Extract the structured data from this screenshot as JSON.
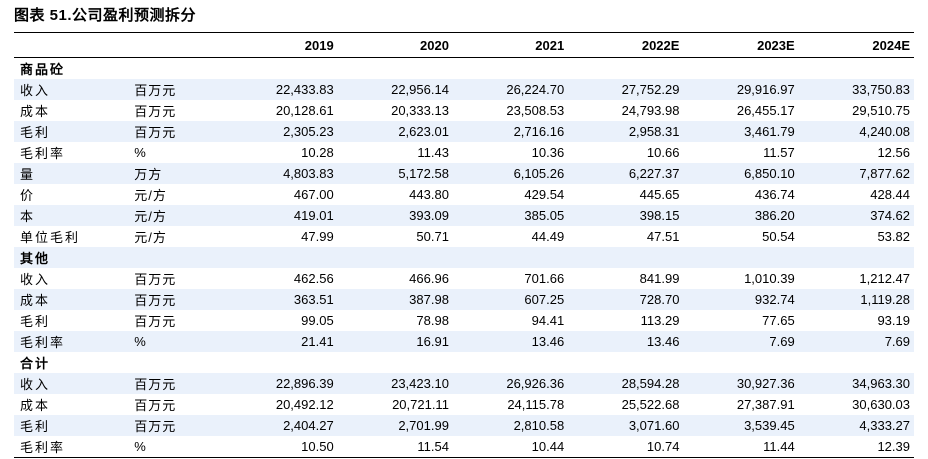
{
  "title": "图表 51.公司盈利预测拆分",
  "columns": [
    "2019",
    "2020",
    "2021",
    "2022E",
    "2023E",
    "2024E"
  ],
  "rows": [
    {
      "type": "section",
      "label": "商品砼"
    },
    {
      "type": "data",
      "label": "收入",
      "unit": "百万元",
      "values": [
        "22,433.83",
        "22,956.14",
        "26,224.70",
        "27,752.29",
        "29,916.97",
        "33,750.83"
      ]
    },
    {
      "type": "data",
      "label": "成本",
      "unit": "百万元",
      "values": [
        "20,128.61",
        "20,333.13",
        "23,508.53",
        "24,793.98",
        "26,455.17",
        "29,510.75"
      ]
    },
    {
      "type": "data",
      "label": "毛利",
      "unit": "百万元",
      "values": [
        "2,305.23",
        "2,623.01",
        "2,716.16",
        "2,958.31",
        "3,461.79",
        "4,240.08"
      ]
    },
    {
      "type": "data",
      "label": "毛利率",
      "unit": "%",
      "values": [
        "10.28",
        "11.43",
        "10.36",
        "10.66",
        "11.57",
        "12.56"
      ]
    },
    {
      "type": "data",
      "label": "量",
      "unit": "万方",
      "values": [
        "4,803.83",
        "5,172.58",
        "6,105.26",
        "6,227.37",
        "6,850.10",
        "7,877.62"
      ]
    },
    {
      "type": "data",
      "label": "价",
      "unit": "元/方",
      "values": [
        "467.00",
        "443.80",
        "429.54",
        "445.65",
        "436.74",
        "428.44"
      ]
    },
    {
      "type": "data",
      "label": "本",
      "unit": "元/方",
      "values": [
        "419.01",
        "393.09",
        "385.05",
        "398.15",
        "386.20",
        "374.62"
      ]
    },
    {
      "type": "data",
      "label": "单位毛利",
      "unit": "元/方",
      "values": [
        "47.99",
        "50.71",
        "44.49",
        "47.51",
        "50.54",
        "53.82"
      ]
    },
    {
      "type": "section",
      "label": "其他"
    },
    {
      "type": "data",
      "label": "收入",
      "unit": "百万元",
      "values": [
        "462.56",
        "466.96",
        "701.66",
        "841.99",
        "1,010.39",
        "1,212.47"
      ]
    },
    {
      "type": "data",
      "label": "成本",
      "unit": "百万元",
      "values": [
        "363.51",
        "387.98",
        "607.25",
        "728.70",
        "932.74",
        "1,119.28"
      ]
    },
    {
      "type": "data",
      "label": "毛利",
      "unit": "百万元",
      "values": [
        "99.05",
        "78.98",
        "94.41",
        "113.29",
        "77.65",
        "93.19"
      ]
    },
    {
      "type": "data",
      "label": "毛利率",
      "unit": "%",
      "values": [
        "21.41",
        "16.91",
        "13.46",
        "13.46",
        "7.69",
        "7.69"
      ]
    },
    {
      "type": "section",
      "label": "合计"
    },
    {
      "type": "data",
      "label": "收入",
      "unit": "百万元",
      "values": [
        "22,896.39",
        "23,423.10",
        "26,926.36",
        "28,594.28",
        "30,927.36",
        "34,963.30"
      ]
    },
    {
      "type": "data",
      "label": "成本",
      "unit": "百万元",
      "values": [
        "20,492.12",
        "20,721.11",
        "24,115.78",
        "25,522.68",
        "27,387.91",
        "30,630.03"
      ]
    },
    {
      "type": "data",
      "label": "毛利",
      "unit": "百万元",
      "values": [
        "2,404.27",
        "2,701.99",
        "2,810.58",
        "3,071.60",
        "3,539.45",
        "4,333.27"
      ]
    },
    {
      "type": "data",
      "label": "毛利率",
      "unit": "%",
      "values": [
        "10.50",
        "11.54",
        "10.44",
        "10.74",
        "11.44",
        "12.39"
      ]
    }
  ]
}
